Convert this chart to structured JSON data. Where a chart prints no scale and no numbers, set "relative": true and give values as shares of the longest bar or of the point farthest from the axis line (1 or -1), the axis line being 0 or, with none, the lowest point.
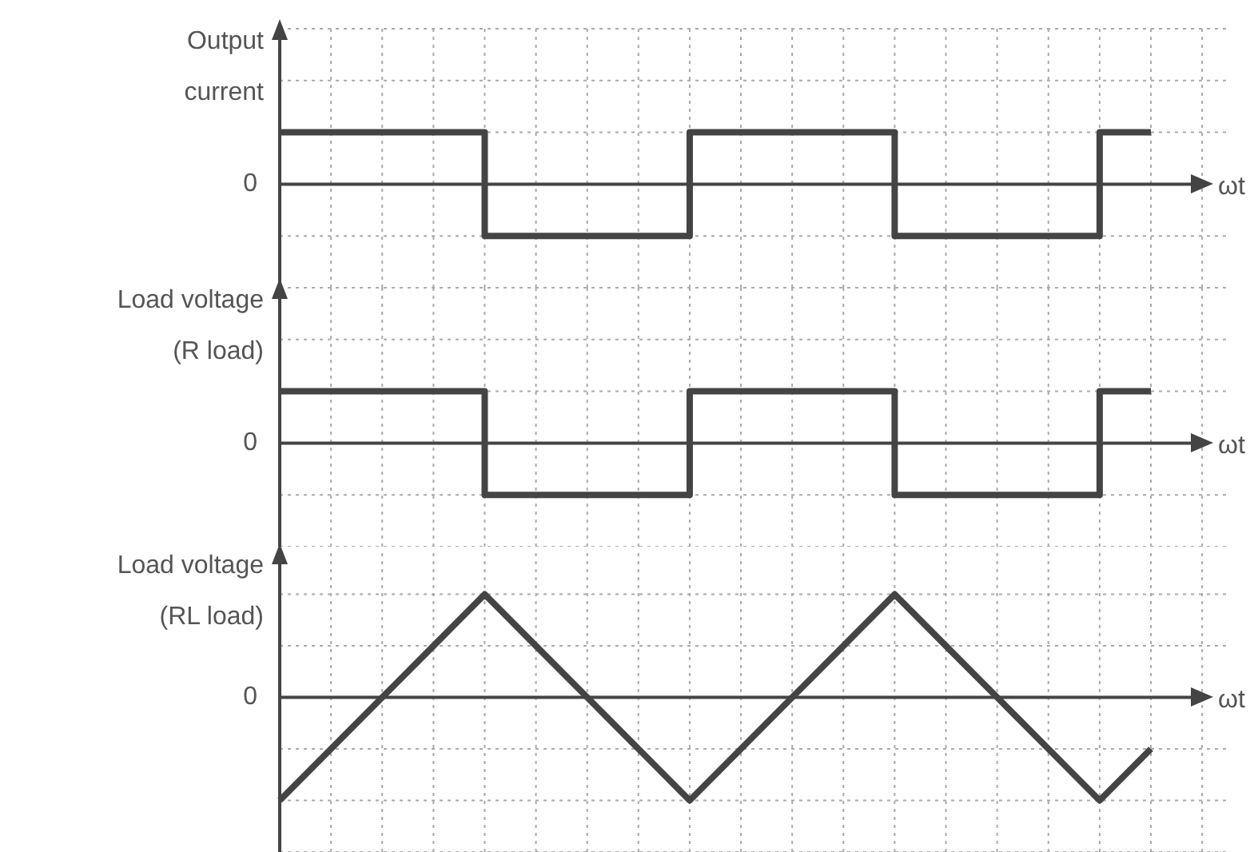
{
  "chart_data": [
    {
      "type": "step",
      "ylabel": "Output current",
      "xlabel": "ωt",
      "annotations": [
        "0"
      ],
      "categories": [
        null,
        null,
        null,
        null,
        null,
        null,
        null,
        null,
        null,
        null,
        null,
        null,
        null,
        null,
        null,
        null,
        null,
        null
      ],
      "values": [
        1,
        1,
        1,
        1,
        -1,
        -1,
        -1,
        -1,
        1,
        1,
        1,
        1,
        -1,
        -1,
        -1,
        -1,
        1,
        1
      ],
      "color": "#444444",
      "relative": true,
      "grid": true,
      "marker": "none",
      "line_style": "solid"
    },
    {
      "type": "step",
      "ylabel": "Load voltage (R load)",
      "xlabel": "ωt",
      "annotations": [
        "0"
      ],
      "categories": [
        null,
        null,
        null,
        null,
        null,
        null,
        null,
        null,
        null,
        null,
        null,
        null,
        null,
        null,
        null,
        null,
        null,
        null
      ],
      "values": [
        1,
        1,
        1,
        1,
        -1,
        -1,
        -1,
        -1,
        1,
        1,
        1,
        1,
        -1,
        -1,
        -1,
        -1,
        1,
        1
      ],
      "color": "#444444",
      "relative": true,
      "grid": true,
      "marker": "none",
      "line_style": "solid"
    },
    {
      "type": "line",
      "ylabel": "Load voltage (RL load)",
      "xlabel": "ωt",
      "annotations": [
        "0"
      ],
      "categories": [
        null,
        null,
        null,
        null,
        null,
        null,
        null,
        null,
        null,
        null,
        null,
        null,
        null,
        null,
        null,
        null,
        null,
        null
      ],
      "values": [
        -1,
        -0.5,
        0,
        0.5,
        1,
        0.5,
        0,
        -0.5,
        -1,
        -0.5,
        0,
        0.5,
        1,
        0.5,
        0,
        -0.5,
        -1,
        -0.5
      ],
      "color": "#444444",
      "relative": true,
      "grid": true,
      "marker": "none",
      "line_style": "solid"
    }
  ]
}
